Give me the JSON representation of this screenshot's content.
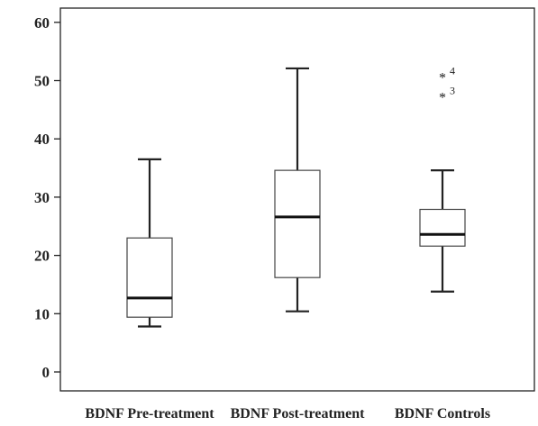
{
  "chart_data": {
    "type": "box",
    "title": "",
    "xlabel": "",
    "ylabel": "",
    "ylim": [
      -3,
      63
    ],
    "yticks": [
      0,
      10,
      20,
      30,
      40,
      50,
      60
    ],
    "grid": false,
    "categories": [
      "BDNF Pre-treatment",
      "BDNF Post-treatment",
      "BDNF Controls"
    ],
    "boxes": [
      {
        "name": "BDNF Pre-treatment",
        "whisker_low": 7.8,
        "q1": 9.4,
        "median": 12.7,
        "q3": 23.0,
        "whisker_high": 36.5,
        "outliers": []
      },
      {
        "name": "BDNF Post-treatment",
        "whisker_low": 10.4,
        "q1": 16.2,
        "median": 26.6,
        "q3": 34.6,
        "whisker_high": 52.1,
        "outliers": []
      },
      {
        "name": "BDNF Controls",
        "whisker_low": 13.8,
        "q1": 21.6,
        "median": 23.6,
        "q3": 27.9,
        "whisker_high": 34.6,
        "outliers": [
          {
            "value": 50.6,
            "label": "4"
          },
          {
            "value": 47.2,
            "label": "3"
          }
        ]
      }
    ],
    "outlier_marker": "*"
  }
}
